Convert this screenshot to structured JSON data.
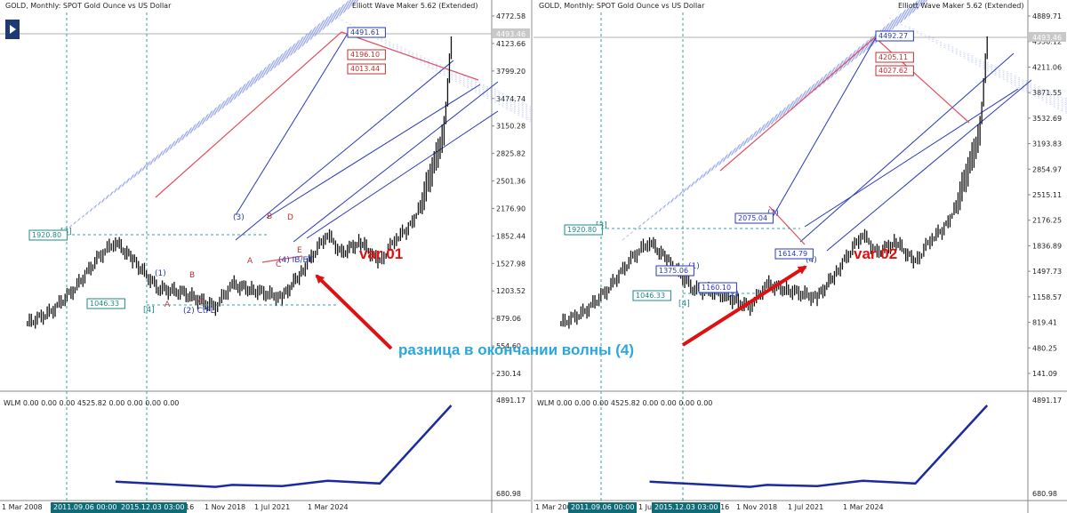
{
  "caption": "разница в окончании волны (4)",
  "chart_data": [
    {
      "type": "line",
      "subtype": "candlestick-price-chart",
      "title": "GOLD, Monthly:  SPOT Gold Ounce vs US Dollar",
      "indicator_label": "Elliott Wave Maker 5.62 (Extended)",
      "variant_label": "var 01",
      "y_ticks": [
        "4772.58",
        "4123.66",
        "3799.20",
        "3474.74",
        "3150.28",
        "2825.82",
        "2501.36",
        "2176.90",
        "1852.44",
        "1527.98",
        "1203.52",
        "879.06",
        "554.60",
        "230.14"
      ],
      "current_price_label": "4493.46",
      "x_ticks": [
        "1 Mar 2008",
        "1 Jul 2013",
        "1 Nov 2018",
        "1 Jul 2021",
        "1 Mar 2024"
      ],
      "x_tick_fragments": [
        "016"
      ],
      "date_tags": [
        "2011.09.06 00:00",
        "2015.12.03 03:00"
      ],
      "price_series": {
        "x": [
          2008.0,
          2009.0,
          2010.0,
          2011.0,
          2011.7,
          2012.5,
          2013.5,
          2014.5,
          2015.9,
          2016.6,
          2017.5,
          2018.7,
          2019.5,
          2020.6,
          2021.2,
          2022.0,
          2022.8,
          2023.5,
          2024.0,
          2024.5,
          2025.0,
          2025.5,
          2025.8
        ],
        "y": [
          850,
          1000,
          1300,
          1700,
          1900,
          1650,
          1300,
          1250,
          1060,
          1350,
          1280,
          1180,
          1500,
          2000,
          1750,
          1900,
          1630,
          1950,
          2050,
          2350,
          2800,
          3300,
          4380
        ]
      },
      "wave_labels": [
        "[3]",
        "[4]",
        "(1)",
        "(2) CtFL",
        "(3)",
        "(4) IB/ET",
        "A",
        "B",
        "C",
        "D",
        "E",
        "A",
        "B",
        "C"
      ],
      "price_labels": [
        "1920.80",
        "1046.33",
        "4491.61",
        "4196.10",
        "4013.44"
      ],
      "subwindow": {
        "label": "WLM 0.00 0.00 0.00 4525.82 0.00 0.00 0.00 0.00",
        "y_ticks": [
          "4891.17",
          "680.98"
        ],
        "x": [
          2011.7,
          2015.9,
          2016.6,
          2018.7,
          2020.6,
          2022.8,
          2025.8
        ],
        "y": [
          1920.8,
          1046.3,
          1375.0,
          1160.1,
          2075.0,
          1614.8,
          4491.6
        ]
      }
    },
    {
      "type": "line",
      "subtype": "candlestick-price-chart",
      "title": "GOLD, Monthly:  SPOT Gold Ounce vs US Dollar",
      "indicator_label": "Elliott Wave Maker 5.62 (Extended)",
      "variant_label": "var 02",
      "y_ticks": [
        "4889.71",
        "4550.12",
        "4211.06",
        "3871.55",
        "3532.69",
        "3193.83",
        "2854.97",
        "2515.11",
        "2176.25",
        "1836.89",
        "1497.73",
        "1158.57",
        "819.41",
        "480.25",
        "141.09"
      ],
      "current_price_label": "4493.46",
      "x_ticks": [
        "1 Mar 2008",
        "1 Jul 2013",
        "1 Nov 2018",
        "1 Jul 2021",
        "1 Mar 2024"
      ],
      "x_tick_fragments": [
        "016"
      ],
      "date_tags": [
        "2011.09.06 00:00",
        "2015.12.03 03:00"
      ],
      "price_series": {
        "x": [
          2008.0,
          2009.0,
          2010.0,
          2011.0,
          2011.7,
          2012.5,
          2013.5,
          2014.5,
          2015.9,
          2016.6,
          2017.5,
          2018.7,
          2019.5,
          2020.6,
          2021.2,
          2022.0,
          2022.8,
          2023.5,
          2024.0,
          2024.5,
          2025.0,
          2025.5,
          2025.8
        ],
        "y": [
          850,
          1000,
          1300,
          1700,
          1900,
          1650,
          1300,
          1250,
          1060,
          1350,
          1280,
          1180,
          1500,
          2000,
          1750,
          1900,
          1630,
          1950,
          2050,
          2350,
          2800,
          3300,
          4380
        ]
      },
      "wave_labels": [
        "[3]",
        "[4]",
        "(1)",
        "(2)",
        "(3)",
        "(4)"
      ],
      "price_labels": [
        "1920.80",
        "1046.33",
        "1375.06",
        "1160.10",
        "2075.04",
        "1614.79",
        "4492.27",
        "4205.11",
        "4027.62"
      ],
      "subwindow": {
        "label": "WLM 0.00 0.00 0.00 4525.82 0.00 0.00 0.00 0.00",
        "y_ticks": [
          "4891.17",
          "680.98"
        ],
        "x": [
          2011.7,
          2015.9,
          2016.6,
          2018.7,
          2020.6,
          2022.8,
          2025.8
        ],
        "y": [
          1920.8,
          1046.3,
          1375.0,
          1160.1,
          2075.0,
          1614.8,
          4491.6
        ]
      }
    }
  ]
}
